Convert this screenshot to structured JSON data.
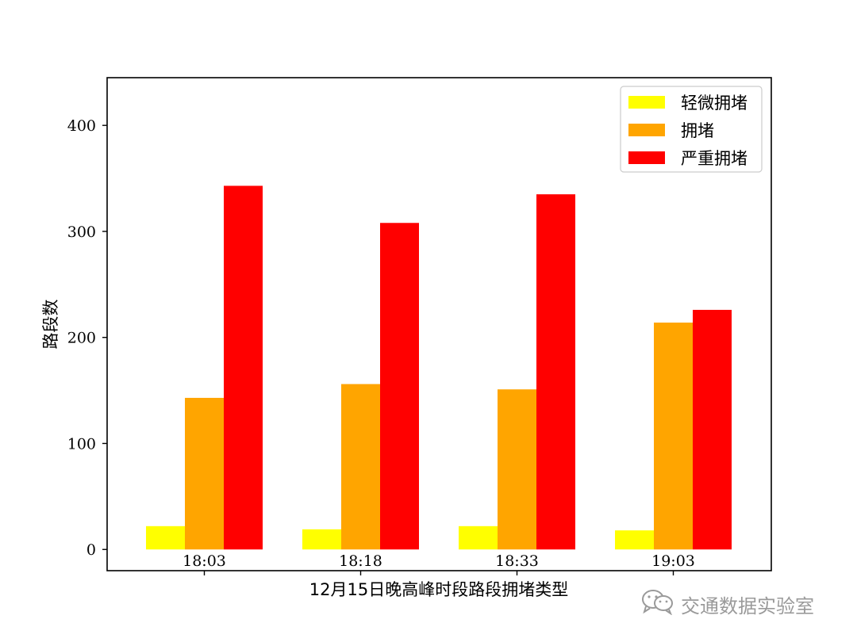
{
  "chart_data": {
    "type": "bar",
    "categories": [
      "18:03",
      "18:18",
      "18:33",
      "19:03"
    ],
    "series": [
      {
        "name": "轻微拥堵",
        "color": "#ffff00",
        "values": [
          22,
          19,
          22,
          18
        ]
      },
      {
        "name": "拥堵",
        "color": "#ffa500",
        "values": [
          143,
          156,
          151,
          214
        ]
      },
      {
        "name": "严重拥堵",
        "color": "#ff0000",
        "values": [
          343,
          308,
          335,
          226
        ]
      }
    ],
    "xlabel": "12月15日晚高峰时段路段拥堵类型",
    "ylabel": "路段数",
    "ylim": [
      -20,
      445
    ],
    "yticks": [
      0,
      100,
      200,
      300,
      400
    ],
    "legend_position": "top-right",
    "grid": false
  },
  "watermark": {
    "text": "交通数据实验室",
    "icon": "wechat-icon"
  }
}
